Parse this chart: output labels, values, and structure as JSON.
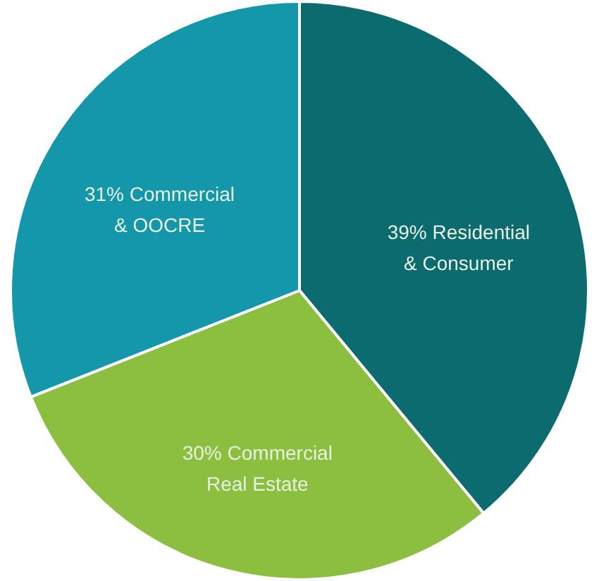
{
  "chart_data": {
    "type": "pie",
    "categories": [
      "Residential & Consumer",
      "Commercial Real Estate",
      "Commercial & OOCRE"
    ],
    "values": [
      39,
      30,
      31
    ],
    "value_labels": [
      "39%",
      "30%",
      "31%"
    ],
    "colors": [
      "#0b6b6e",
      "#8cbf3f",
      "#1497ab"
    ]
  }
}
